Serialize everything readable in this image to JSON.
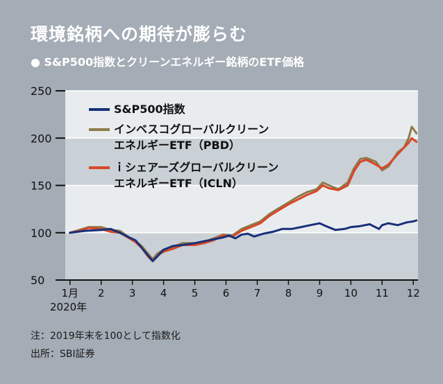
{
  "title": "環境銘柄への期待が膨らむ",
  "subtitle": "● S&P500指数とクリーンエネルギー銘柄のETF価格",
  "notes": {
    "note1": "注：2019年末を100として指数化",
    "note2": "出所：SBI証券"
  },
  "chart_data": {
    "type": "line",
    "title": "環境銘柄への期待が膨らむ",
    "subtitle": "S&P500指数とクリーンエネルギー銘柄のETF価格",
    "x_unit": "月 (2020年)",
    "x_tick_labels": [
      "1月",
      "2",
      "3",
      "4",
      "5",
      "6",
      "7",
      "8",
      "9",
      "10",
      "11",
      "12"
    ],
    "x_tick_values": [
      1,
      2,
      3,
      4,
      5,
      6,
      7,
      8,
      9,
      10,
      11,
      12
    ],
    "x_year_label": "2020年",
    "xlim": [
      0.85,
      12.15
    ],
    "y_ticks": [
      250,
      200,
      150,
      100,
      50
    ],
    "ylim": [
      50,
      250
    ],
    "grid_bands": true,
    "legend_placement": "top-left",
    "series": [
      {
        "name": "S&P500指数",
        "color": "#17307a",
        "x": [
          1.0,
          1.5,
          2.0,
          2.3,
          2.6,
          2.9,
          3.1,
          3.3,
          3.5,
          3.65,
          3.8,
          4.0,
          4.3,
          4.6,
          5.0,
          5.3,
          5.6,
          5.9,
          6.1,
          6.3,
          6.5,
          6.7,
          6.9,
          7.2,
          7.5,
          7.8,
          8.1,
          8.4,
          8.7,
          9.0,
          9.2,
          9.5,
          9.8,
          10.0,
          10.3,
          10.6,
          10.9,
          11.0,
          11.2,
          11.5,
          11.8,
          12.0,
          12.1
        ],
        "values": [
          100,
          102,
          103,
          104,
          100,
          95,
          92,
          84,
          76,
          70,
          75,
          82,
          86,
          87,
          89,
          91,
          93,
          95,
          97,
          94,
          98,
          99,
          96,
          99,
          101,
          104,
          104,
          106,
          108,
          110,
          107,
          103,
          104,
          106,
          107,
          109,
          104,
          108,
          110,
          108,
          111,
          112,
          113
        ]
      },
      {
        "name": "インベスコグローバルクリーンエネルギーETF（PBD）",
        "color": "#8c7a4a",
        "x": [
          1.0,
          1.3,
          1.6,
          2.0,
          2.3,
          2.6,
          2.9,
          3.1,
          3.3,
          3.5,
          3.65,
          3.8,
          4.0,
          4.3,
          4.6,
          5.0,
          5.3,
          5.6,
          5.9,
          6.2,
          6.5,
          6.8,
          7.1,
          7.4,
          7.7,
          8.0,
          8.3,
          8.6,
          8.9,
          9.1,
          9.3,
          9.6,
          9.9,
          10.1,
          10.3,
          10.5,
          10.8,
          11.0,
          11.2,
          11.5,
          11.7,
          11.85,
          11.95,
          12.1
        ],
        "values": [
          100,
          103,
          106,
          106,
          103,
          102,
          95,
          91,
          86,
          78,
          72,
          78,
          82,
          85,
          89,
          89,
          90,
          94,
          98,
          97,
          104,
          108,
          112,
          120,
          126,
          132,
          138,
          143,
          146,
          153,
          150,
          146,
          153,
          168,
          178,
          179,
          175,
          166,
          170,
          185,
          190,
          200,
          212,
          205
        ]
      },
      {
        "name": "iシェアーズグローバルクリーンエネルギーETF（ICLN）",
        "color": "#d94727",
        "x": [
          1.0,
          1.3,
          1.6,
          2.0,
          2.3,
          2.6,
          2.9,
          3.1,
          3.3,
          3.5,
          3.65,
          3.8,
          4.0,
          4.3,
          4.6,
          5.0,
          5.3,
          5.6,
          5.9,
          6.2,
          6.5,
          6.8,
          7.1,
          7.4,
          7.7,
          8.0,
          8.3,
          8.6,
          8.9,
          9.1,
          9.3,
          9.6,
          9.9,
          10.1,
          10.3,
          10.5,
          10.8,
          11.0,
          11.2,
          11.5,
          11.7,
          11.85,
          11.95,
          12.1
        ],
        "values": [
          100,
          102,
          105,
          104,
          101,
          100,
          94,
          90,
          84,
          75,
          70,
          76,
          80,
          83,
          87,
          87,
          89,
          92,
          97,
          96,
          102,
          106,
          110,
          118,
          124,
          130,
          135,
          140,
          144,
          150,
          147,
          145,
          150,
          165,
          175,
          177,
          172,
          168,
          172,
          183,
          190,
          195,
          200,
          196
        ]
      }
    ],
    "legend_label_lines": [
      [
        "S&P500指数"
      ],
      [
        "インベスコグローバルクリーン",
        "エネルギーETF（PBD）"
      ],
      [
        "ｉシェアーズグローバルクリーン",
        "エネルギーETF（ICLN）"
      ]
    ]
  }
}
